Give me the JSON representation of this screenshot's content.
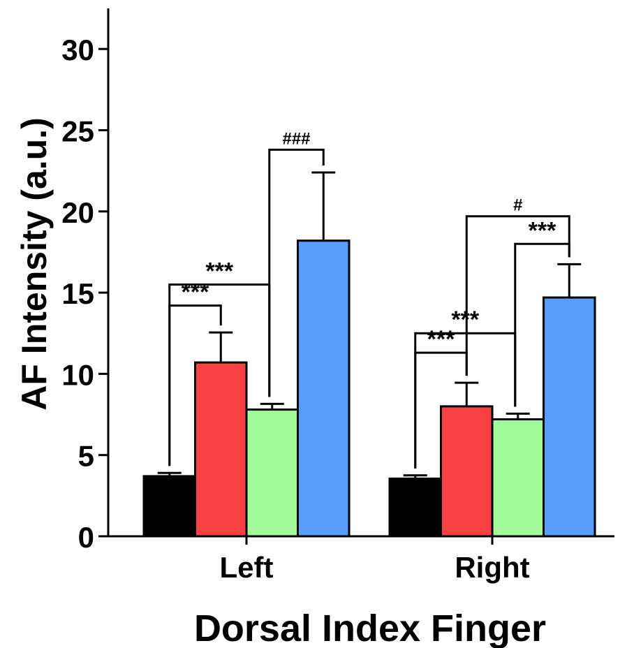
{
  "chart_data": {
    "type": "bar",
    "title": "",
    "xlabel": "Dorsal Index Finger",
    "ylabel": "AF Intensity (a.u.)",
    "ylim": [
      0,
      32.5
    ],
    "yticks": [
      0,
      5,
      10,
      15,
      20,
      25,
      30
    ],
    "grid": false,
    "legend": "none",
    "categories": [
      "Left",
      "Right"
    ],
    "series": [
      {
        "color": "#000000",
        "values": [
          3.7,
          3.55
        ],
        "errors": [
          0.2,
          0.2
        ]
      },
      {
        "color": "#f94144",
        "values": [
          10.7,
          8.0
        ],
        "errors": [
          1.85,
          1.45
        ]
      },
      {
        "color": "#a2fb9a",
        "values": [
          7.8,
          7.2
        ],
        "errors": [
          0.35,
          0.35
        ]
      },
      {
        "color": "#569ef9",
        "values": [
          18.2,
          14.7
        ],
        "errors": [
          4.2,
          2.05
        ]
      }
    ],
    "annotations": [
      {
        "category": 0,
        "from": 0,
        "to": 2,
        "y": 15.5,
        "label": "***"
      },
      {
        "category": 0,
        "from": 0,
        "to": 1,
        "y": 14.2,
        "label": "***"
      },
      {
        "category": 0,
        "from": 2,
        "to": 3,
        "y": 23.8,
        "label": "###"
      },
      {
        "category": 1,
        "from": 0,
        "to": 2,
        "y": 12.5,
        "label": "***"
      },
      {
        "category": 1,
        "from": 0,
        "to": 1,
        "y": 11.3,
        "label": "***"
      },
      {
        "category": 1,
        "from": 2,
        "to": 3,
        "y": 18.0,
        "label": "***"
      },
      {
        "category": 1,
        "from": 1,
        "to": 3,
        "y": 19.7,
        "label": "#"
      }
    ]
  }
}
